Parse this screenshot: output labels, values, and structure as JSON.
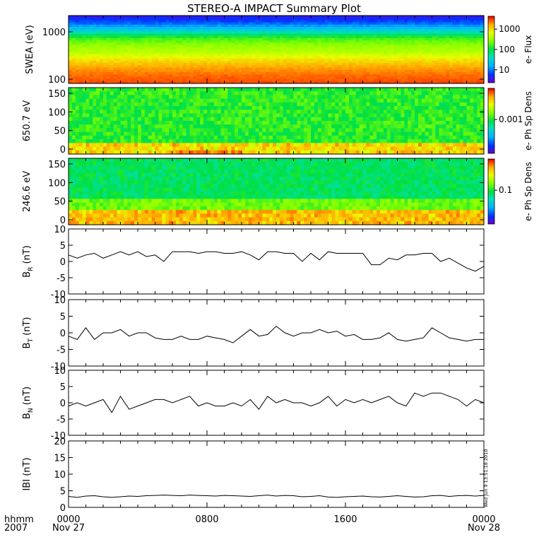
{
  "title": "STEREO-A IMPACT Summary Plot",
  "stamp": "Wed Jun  9 13:51:18 2010",
  "x_axis": {
    "label_line1": "hhmm",
    "label_line2": "2007",
    "ticks": [
      {
        "time": "0000",
        "date": "Nov 27",
        "hours": 0
      },
      {
        "time": "0800",
        "date": "",
        "hours": 8
      },
      {
        "time": "1600",
        "date": "",
        "hours": 16
      },
      {
        "time": "0000",
        "date": "Nov 28",
        "hours": 24
      }
    ]
  },
  "colors": {
    "line": "#000000",
    "colormap": [
      "#6a00d8",
      "#0033ff",
      "#00b0ff",
      "#00e0c0",
      "#00e040",
      "#80ff00",
      "#e8ff00",
      "#ffb000",
      "#ff5000",
      "#e00000"
    ]
  },
  "chart_data": [
    {
      "type": "heatmap",
      "panel": "swea",
      "ylabel": "SWEA (eV)",
      "yscale": "log",
      "ylim": [
        90,
        2000
      ],
      "yticks": [
        "1000",
        "100"
      ],
      "colorbar_label": "e- Flux",
      "colorbar_ticks": [
        "1000",
        "100",
        "10"
      ],
      "description_values": {
        "rows_energy_eV": [
          2000,
          1500,
          1000,
          700,
          500,
          350,
          250,
          180,
          130,
          100
        ],
        "row_levels": [
          0.05,
          0.15,
          0.3,
          0.5,
          0.58,
          0.62,
          0.72,
          0.8,
          0.86,
          0.9
        ]
      }
    },
    {
      "type": "heatmap",
      "panel": "pad650",
      "ylabel": "650.7 eV",
      "ylim": [
        0,
        180
      ],
      "yticks": [
        "150",
        "100",
        "50",
        "0"
      ],
      "colorbar_label": "e- Ph Sp Dens",
      "colorbar_ticks": [
        "0.001"
      ]
    },
    {
      "type": "heatmap",
      "panel": "pad246",
      "ylabel": "246.6 eV",
      "ylim": [
        0,
        180
      ],
      "yticks": [
        "150",
        "100",
        "50",
        "0"
      ],
      "colorbar_label": "e- Ph Sp Dens",
      "colorbar_ticks": [
        "0.1"
      ]
    },
    {
      "type": "line",
      "panel": "br",
      "ylabel": "B",
      "ylabel_sub": "R",
      "ylabel_unit": "(nT)",
      "ylim": [
        -10,
        10
      ],
      "yticks": [
        "10",
        "5",
        "0",
        "-5",
        "-10"
      ],
      "x": [
        0,
        0.5,
        1,
        1.5,
        2,
        2.5,
        3,
        3.5,
        4,
        4.5,
        5,
        5.5,
        6,
        6.5,
        7,
        7.5,
        8,
        8.5,
        9,
        9.5,
        10,
        10.5,
        11,
        11.5,
        12,
        12.5,
        13,
        13.5,
        14,
        14.5,
        15,
        15.5,
        16,
        16.5,
        17,
        17.5,
        18,
        18.5,
        19,
        19.5,
        20,
        20.5,
        21,
        21.5,
        22,
        22.5,
        23,
        23.5,
        24
      ],
      "y": [
        2,
        1,
        2,
        2.5,
        1,
        2,
        3,
        2,
        3,
        1.5,
        2,
        0,
        3,
        3,
        3,
        2.5,
        3,
        3,
        2.5,
        2.5,
        3,
        2,
        0.5,
        3,
        3,
        2.5,
        2.5,
        0,
        2.5,
        0.5,
        3,
        2.5,
        2.5,
        2.5,
        2.5,
        -1,
        -1,
        1,
        0.5,
        2,
        2,
        2.5,
        2.5,
        0,
        1,
        -0.5,
        -2,
        -3,
        -1.5
      ]
    },
    {
      "type": "line",
      "panel": "bt",
      "ylabel": "B",
      "ylabel_sub": "T",
      "ylabel_unit": "(nT)",
      "ylim": [
        -10,
        10
      ],
      "yticks": [
        "10",
        "5",
        "0",
        "-5",
        "-10"
      ],
      "x": [
        0,
        0.5,
        1,
        1.5,
        2,
        2.5,
        3,
        3.5,
        4,
        4.5,
        5,
        5.5,
        6,
        6.5,
        7,
        7.5,
        8,
        8.5,
        9,
        9.5,
        10,
        10.5,
        11,
        11.5,
        12,
        12.5,
        13,
        13.5,
        14,
        14.5,
        15,
        15.5,
        16,
        16.5,
        17,
        17.5,
        18,
        18.5,
        19,
        19.5,
        20,
        20.5,
        21,
        21.5,
        22,
        22.5,
        23,
        23.5,
        24
      ],
      "y": [
        -1,
        -2,
        1.5,
        -2,
        0,
        0,
        1,
        -1,
        0,
        0,
        -1.5,
        -2,
        -2,
        -1,
        -2,
        -2,
        -1,
        -1.5,
        -2,
        -3,
        -1,
        1,
        -1,
        -0.5,
        2,
        0,
        -1,
        0,
        0,
        1,
        0,
        0.5,
        -1,
        -0.5,
        -2,
        -2,
        -1.5,
        0,
        -2,
        -2.5,
        -2,
        -1.5,
        1.5,
        0,
        -1.5,
        -2,
        -2.5,
        -2,
        -2
      ]
    },
    {
      "type": "line",
      "panel": "bn",
      "ylabel": "B",
      "ylabel_sub": "N",
      "ylabel_unit": "(nT)",
      "ylim": [
        -10,
        10
      ],
      "yticks": [
        "10",
        "5",
        "0",
        "-5",
        "-10"
      ],
      "x": [
        0,
        0.5,
        1,
        1.5,
        2,
        2.5,
        3,
        3.5,
        4,
        4.5,
        5,
        5.5,
        6,
        6.5,
        7,
        7.5,
        8,
        8.5,
        9,
        9.5,
        10,
        10.5,
        11,
        11.5,
        12,
        12.5,
        13,
        13.5,
        14,
        14.5,
        15,
        15.5,
        16,
        16.5,
        17,
        17.5,
        18,
        18.5,
        19,
        19.5,
        20,
        20.5,
        21,
        21.5,
        22,
        22.5,
        23,
        23.5,
        24
      ],
      "y": [
        -1,
        0,
        -1,
        0,
        1,
        -3,
        2,
        -2,
        -1,
        0,
        1,
        1,
        0,
        1,
        2,
        -1,
        0,
        -1,
        -1,
        0,
        -1,
        1,
        -2,
        2,
        0,
        1,
        0,
        0,
        -1,
        0,
        2,
        -1,
        1,
        0,
        1,
        0,
        1,
        2,
        0,
        -1,
        3,
        2,
        3,
        3,
        2,
        1,
        -1,
        1,
        0
      ]
    },
    {
      "type": "line",
      "panel": "bmag",
      "ylabel": "IBI",
      "ylabel_sub": "",
      "ylabel_unit": "(nT)",
      "ylim": [
        0,
        20
      ],
      "yticks": [
        "20",
        "15",
        "10",
        "5",
        "0"
      ],
      "x": [
        0,
        0.5,
        1,
        1.5,
        2,
        2.5,
        3,
        3.5,
        4,
        4.5,
        5,
        5.5,
        6,
        6.5,
        7,
        7.5,
        8,
        8.5,
        9,
        9.5,
        10,
        10.5,
        11,
        11.5,
        12,
        12.5,
        13,
        13.5,
        14,
        14.5,
        15,
        15.5,
        16,
        16.5,
        17,
        17.5,
        18,
        18.5,
        19,
        19.5,
        20,
        20.5,
        21,
        21.5,
        22,
        22.5,
        23,
        23.5,
        24
      ],
      "y": [
        3.3,
        3,
        3.4,
        3.5,
        3.2,
        3,
        3.2,
        3.4,
        3.3,
        3.5,
        3.6,
        3.7,
        3.6,
        3.5,
        3.7,
        3.6,
        3.5,
        3.4,
        3.6,
        3.5,
        3.4,
        3.3,
        3.5,
        3.7,
        3.4,
        3.6,
        3.5,
        3.2,
        3.3,
        3.5,
        3.1,
        3,
        3.2,
        3.3,
        3.4,
        3.2,
        3.1,
        3.3,
        3.5,
        3.3,
        3.1,
        3.2,
        3.5,
        3.6,
        3.3,
        3.5,
        3.6,
        3.4,
        3.6
      ]
    }
  ]
}
